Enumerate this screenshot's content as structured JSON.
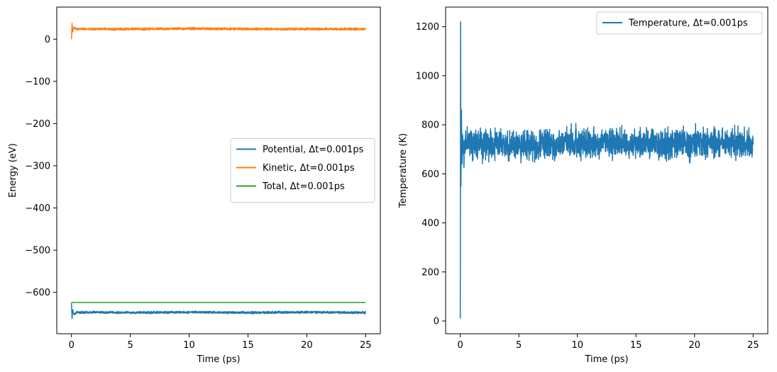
{
  "chart_data": [
    {
      "type": "line",
      "xlabel": "Time (ps)",
      "ylabel": "Energy (eV)",
      "xlim": [
        -1.25,
        26.25
      ],
      "ylim": [
        -698,
        76
      ],
      "xticks": [
        0,
        5,
        10,
        15,
        20,
        25
      ],
      "yticks": [
        0,
        -100,
        -200,
        -300,
        -400,
        -500,
        -600
      ],
      "ytick_labels": [
        "0",
        "−100",
        "−200",
        "−300",
        "−400",
        "−500",
        "−600"
      ],
      "legend_position": "center-right",
      "series": [
        {
          "name": "Potential, Δt=0.001ps",
          "color": "#1f77b4",
          "x": [
            0,
            0.05,
            0.1,
            0.2,
            0.5,
            1,
            2,
            5,
            10,
            15,
            20,
            25
          ],
          "y": [
            -625,
            -662,
            -641,
            -652,
            -647,
            -648,
            -647,
            -648,
            -647,
            -648,
            -647,
            -648
          ],
          "noise": 2
        },
        {
          "name": "Kinetic, Δt=0.001ps",
          "color": "#ff7f0e",
          "x": [
            0,
            0.05,
            0.1,
            0.2,
            0.5,
            1,
            2,
            5,
            10,
            15,
            20,
            25
          ],
          "y": [
            0,
            38,
            17,
            28,
            24,
            24,
            24,
            24,
            25,
            24,
            24,
            24
          ],
          "noise": 2
        },
        {
          "name": "Total, Δt=0.001ps",
          "color": "#2ca02c",
          "x": [
            0,
            25
          ],
          "y": [
            -624,
            -624
          ],
          "noise": 0
        }
      ]
    },
    {
      "type": "line",
      "xlabel": "Time (ps)",
      "ylabel": "Temperature (K)",
      "xlim": [
        -1.25,
        26.25
      ],
      "ylim": [
        -52,
        1280
      ],
      "xticks": [
        0,
        5,
        10,
        15,
        20,
        25
      ],
      "yticks": [
        0,
        200,
        400,
        600,
        800,
        1000,
        1200
      ],
      "ytick_labels": [
        "0",
        "200",
        "400",
        "600",
        "800",
        "1000",
        "1200"
      ],
      "legend_position": "top-right",
      "series": [
        {
          "name": "Temperature, Δt=0.001ps",
          "color": "#1f77b4",
          "x": [
            0,
            0.03,
            0.06,
            0.1,
            0.15,
            0.2,
            0.3,
            0.5,
            1,
            2,
            5,
            10,
            15,
            20,
            25
          ],
          "y": [
            10,
            1220,
            550,
            860,
            640,
            760,
            700,
            740,
            720,
            725,
            715,
            725,
            720,
            725,
            720
          ],
          "noise": 45
        }
      ]
    }
  ]
}
